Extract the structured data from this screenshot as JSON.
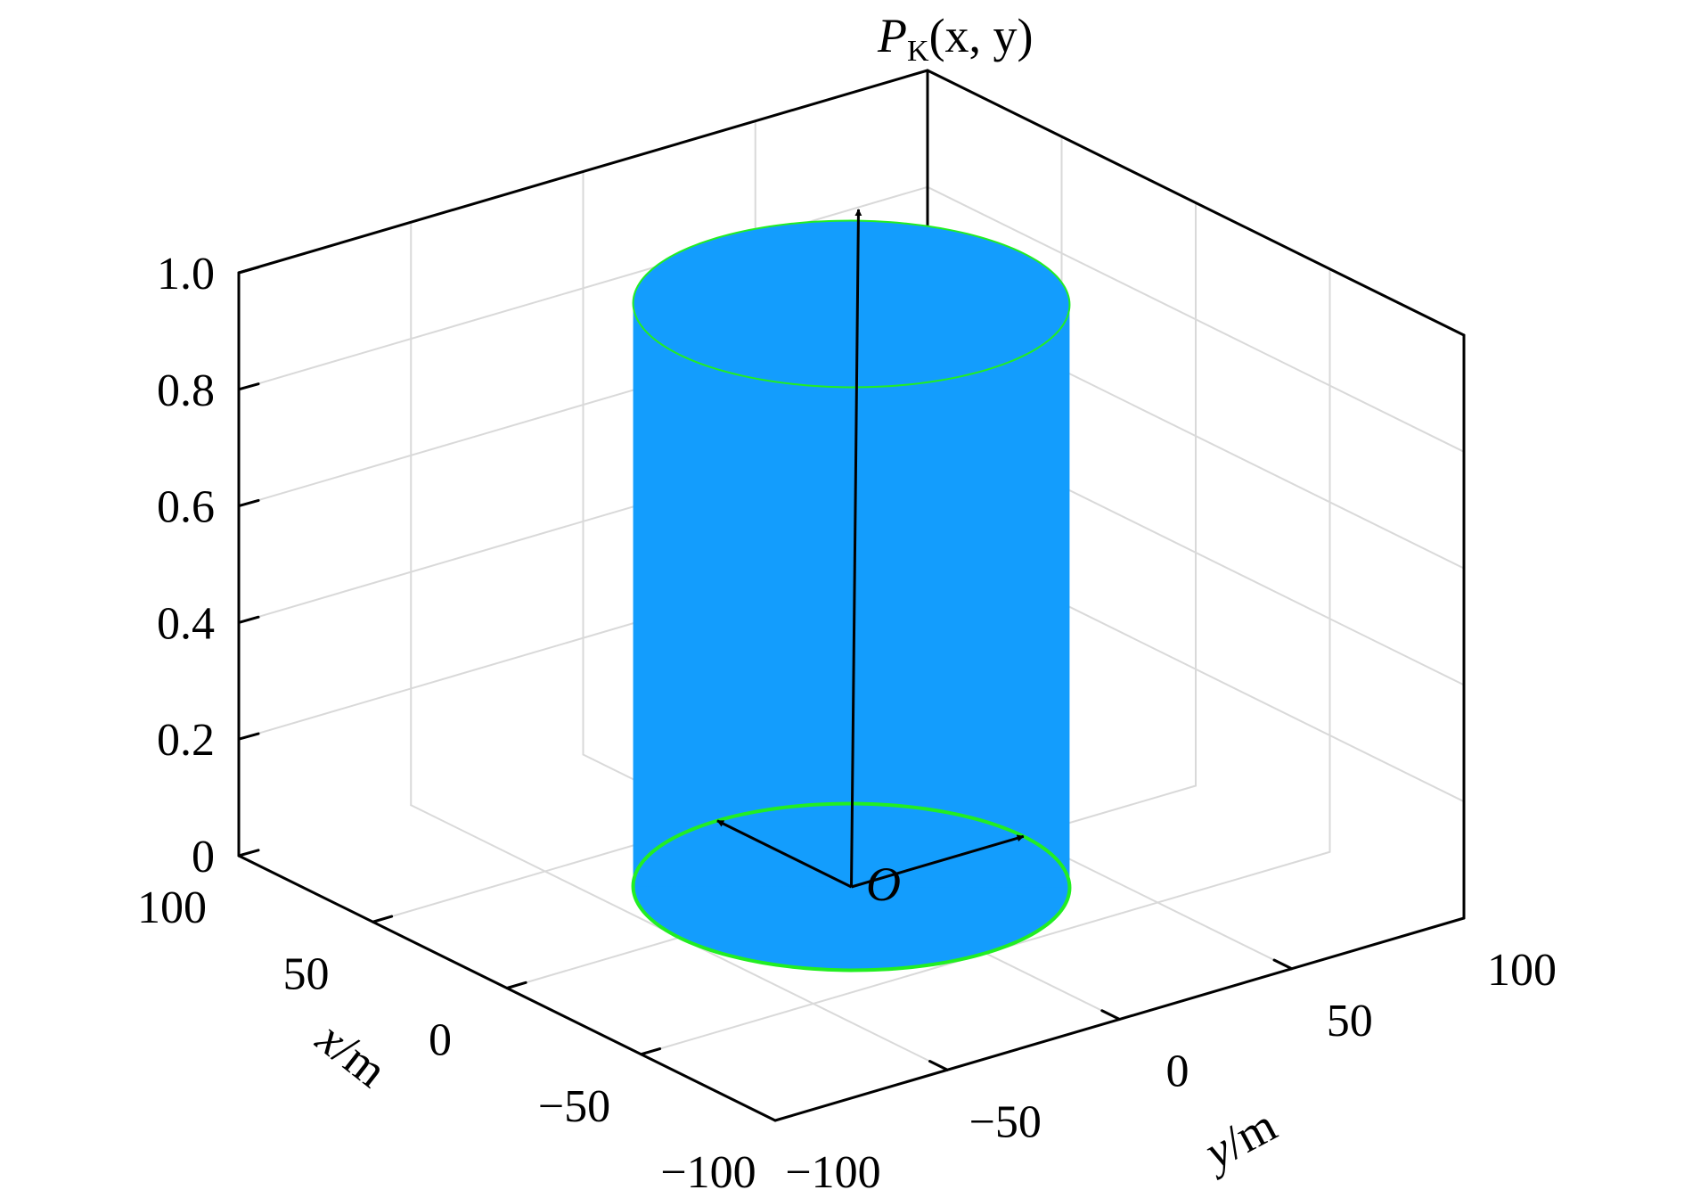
{
  "chart_data": {
    "type": "surface3d",
    "xlabel": {
      "var": "x",
      "unit": "/m"
    },
    "ylabel": {
      "var": "y",
      "unit": "/m"
    },
    "zlabel": {
      "main": "P",
      "sub": "K",
      "args": "(x, y)"
    },
    "origin_label": "O",
    "xlim": [
      -100,
      100
    ],
    "ylim": [
      -100,
      100
    ],
    "zlim": [
      0,
      1
    ],
    "x_ticks": [
      {
        "value": 100,
        "label": "100"
      },
      {
        "value": 50,
        "label": "50"
      },
      {
        "value": 0,
        "label": "0"
      },
      {
        "value": -50,
        "label": "−50"
      },
      {
        "value": -100,
        "label": "−100"
      }
    ],
    "y_ticks": [
      {
        "value": -100,
        "label": "−100"
      },
      {
        "value": -50,
        "label": "−50"
      },
      {
        "value": 0,
        "label": "0"
      },
      {
        "value": 50,
        "label": "50"
      },
      {
        "value": 100,
        "label": "100"
      }
    ],
    "z_ticks": [
      {
        "value": 0,
        "label": "0"
      },
      {
        "value": 0.2,
        "label": "0.2"
      },
      {
        "value": 0.4,
        "label": "0.4"
      },
      {
        "value": 0.6,
        "label": "0.6"
      },
      {
        "value": 0.8,
        "label": "0.8"
      },
      {
        "value": 1.0,
        "label": "1.0"
      }
    ],
    "grid": true,
    "cylinder": {
      "center": [
        0,
        0
      ],
      "radius": 50,
      "z": [
        0,
        1
      ]
    },
    "colors": {
      "surface": "#139dfd",
      "edge": "#22ee22",
      "axes": "#000000",
      "grid": "#d9d9d9"
    }
  }
}
